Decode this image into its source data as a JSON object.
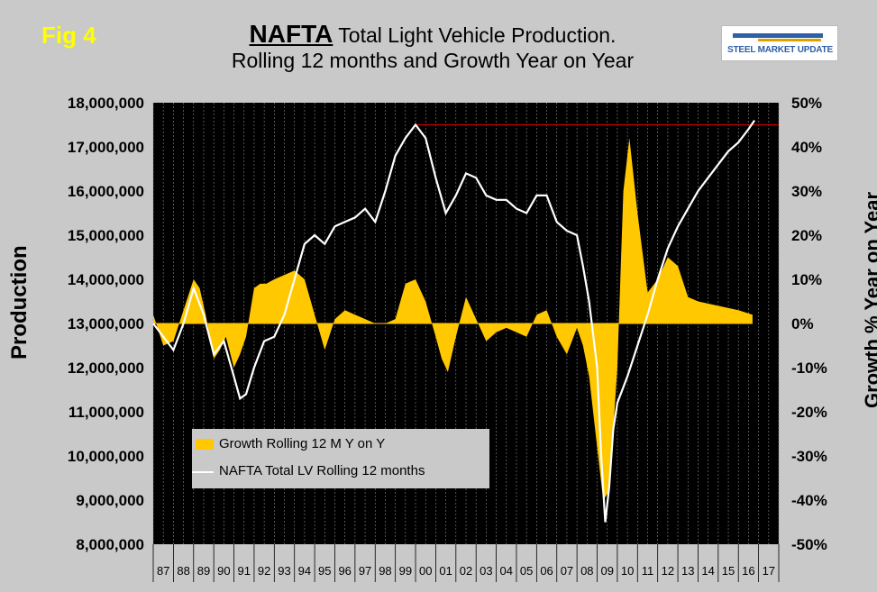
{
  "header": {
    "fig_label": "Fig 4",
    "title_bold": "NAFTA",
    "title_rest": " Total Light Vehicle Production.",
    "title_line2": "Rolling 12 months and Growth Year on Year",
    "logo_text": "STEEL MARKET UPDATE"
  },
  "colors": {
    "background": "#c9c9c9",
    "plot_bg": "#000000",
    "growth_fill": "#ffc800",
    "production_line": "#ffffff",
    "reference_line": "#cc0000"
  },
  "chart_data": {
    "type": "bar",
    "title": "NAFTA Total Light Vehicle Production. Rolling 12 months and Growth Year on Year",
    "ylabel": "Production",
    "y2label": "Growth % Year on Year",
    "ylim": [
      8000000,
      18000000
    ],
    "y2lim": [
      -50,
      50
    ],
    "yticks": [
      "18,000,000",
      "17,000,000",
      "16,000,000",
      "15,000,000",
      "14,000,000",
      "13,000,000",
      "12,000,000",
      "11,000,000",
      "10,000,000",
      "9,000,000",
      "8,000,000"
    ],
    "y2ticks": [
      "50%",
      "40%",
      "30%",
      "20%",
      "10%",
      "0%",
      "-10%",
      "-20%",
      "-30%",
      "-40%",
      "-50%"
    ],
    "categories": [
      "87",
      "88",
      "89",
      "90",
      "91",
      "92",
      "93",
      "94",
      "95",
      "96",
      "97",
      "98",
      "99",
      "00",
      "01",
      "02",
      "03",
      "04",
      "05",
      "06",
      "07",
      "08",
      "09",
      "10",
      "11",
      "12",
      "13",
      "14",
      "15",
      "16",
      "17"
    ],
    "grid": true,
    "legend_position": "bottom-left",
    "reference_line": {
      "value": 17500000,
      "from": "00",
      "to": "17"
    },
    "series": [
      {
        "name": "Growth Rolling 12 M Y on Y",
        "type": "area",
        "axis": "right",
        "x": [
          1987.0,
          1987.5,
          1988.0,
          1988.5,
          1989.0,
          1989.3,
          1989.6,
          1990.0,
          1990.3,
          1990.6,
          1991.0,
          1991.3,
          1991.6,
          1992.0,
          1992.3,
          1992.6,
          1993.0,
          1993.5,
          1994.0,
          1994.5,
          1995.0,
          1995.5,
          1996.0,
          1996.5,
          1997.0,
          1997.5,
          1998.0,
          1998.5,
          1999.0,
          1999.5,
          2000.0,
          2000.5,
          2001.0,
          2001.3,
          2001.6,
          2002.0,
          2002.5,
          2003.0,
          2003.5,
          2004.0,
          2004.5,
          2005.0,
          2005.5,
          2006.0,
          2006.5,
          2007.0,
          2007.5,
          2008.0,
          2008.3,
          2008.6,
          2009.0,
          2009.3,
          2009.6,
          2010.0,
          2010.3,
          2010.6,
          2011.0,
          2011.5,
          2012.0,
          2012.5,
          2013.0,
          2013.5,
          2014.0,
          2015.0,
          2016.0,
          2016.7
        ],
        "values": [
          2,
          -5,
          -4,
          3,
          10,
          8,
          2,
          -8,
          -6,
          -3,
          -10,
          -7,
          -3,
          8,
          9,
          9,
          10,
          11,
          12,
          10,
          2,
          -6,
          1,
          3,
          2,
          1,
          0,
          0,
          1,
          9,
          10,
          5,
          -3,
          -8,
          -11,
          -3,
          6,
          1,
          -4,
          -2,
          -1,
          -2,
          -3,
          2,
          3,
          -3,
          -7,
          -1,
          -5,
          -12,
          -28,
          -40,
          -38,
          -10,
          30,
          42,
          25,
          7,
          10,
          15,
          13,
          6,
          5,
          4,
          3,
          2
        ]
      },
      {
        "name": "NAFTA Total LV Rolling 12 months",
        "type": "line",
        "axis": "left",
        "x": [
          1987.0,
          1987.5,
          1988.0,
          1988.5,
          1989.0,
          1989.5,
          1990.0,
          1990.5,
          1991.0,
          1991.3,
          1991.6,
          1992.0,
          1992.5,
          1993.0,
          1993.5,
          1994.0,
          1994.5,
          1995.0,
          1995.5,
          1996.0,
          1996.5,
          1997.0,
          1997.5,
          1998.0,
          1998.5,
          1999.0,
          1999.5,
          2000.0,
          2000.5,
          2001.0,
          2001.5,
          2002.0,
          2002.5,
          2003.0,
          2003.5,
          2004.0,
          2004.5,
          2005.0,
          2005.5,
          2006.0,
          2006.5,
          2007.0,
          2007.5,
          2008.0,
          2008.3,
          2008.6,
          2009.0,
          2009.2,
          2009.4,
          2009.6,
          2009.8,
          2010.0,
          2010.5,
          2011.0,
          2011.5,
          2012.0,
          2012.5,
          2013.0,
          2013.5,
          2014.0,
          2014.5,
          2015.0,
          2015.5,
          2016.0,
          2016.5,
          2016.8
        ],
        "values": [
          13000000,
          12700000,
          12400000,
          13000000,
          13800000,
          13200000,
          12300000,
          12600000,
          11800000,
          11300000,
          11400000,
          12000000,
          12600000,
          12700000,
          13200000,
          14000000,
          14800000,
          15000000,
          14800000,
          15200000,
          15300000,
          15400000,
          15600000,
          15300000,
          16000000,
          16800000,
          17200000,
          17500000,
          17200000,
          16300000,
          15500000,
          15900000,
          16400000,
          16300000,
          15900000,
          15800000,
          15800000,
          15600000,
          15500000,
          15900000,
          15900000,
          15300000,
          15100000,
          15000000,
          14300000,
          13500000,
          12000000,
          10000000,
          8500000,
          9300000,
          10600000,
          11200000,
          11800000,
          12500000,
          13200000,
          14000000,
          14700000,
          15200000,
          15600000,
          16000000,
          16300000,
          16600000,
          16900000,
          17100000,
          17400000,
          17600000
        ]
      }
    ]
  }
}
